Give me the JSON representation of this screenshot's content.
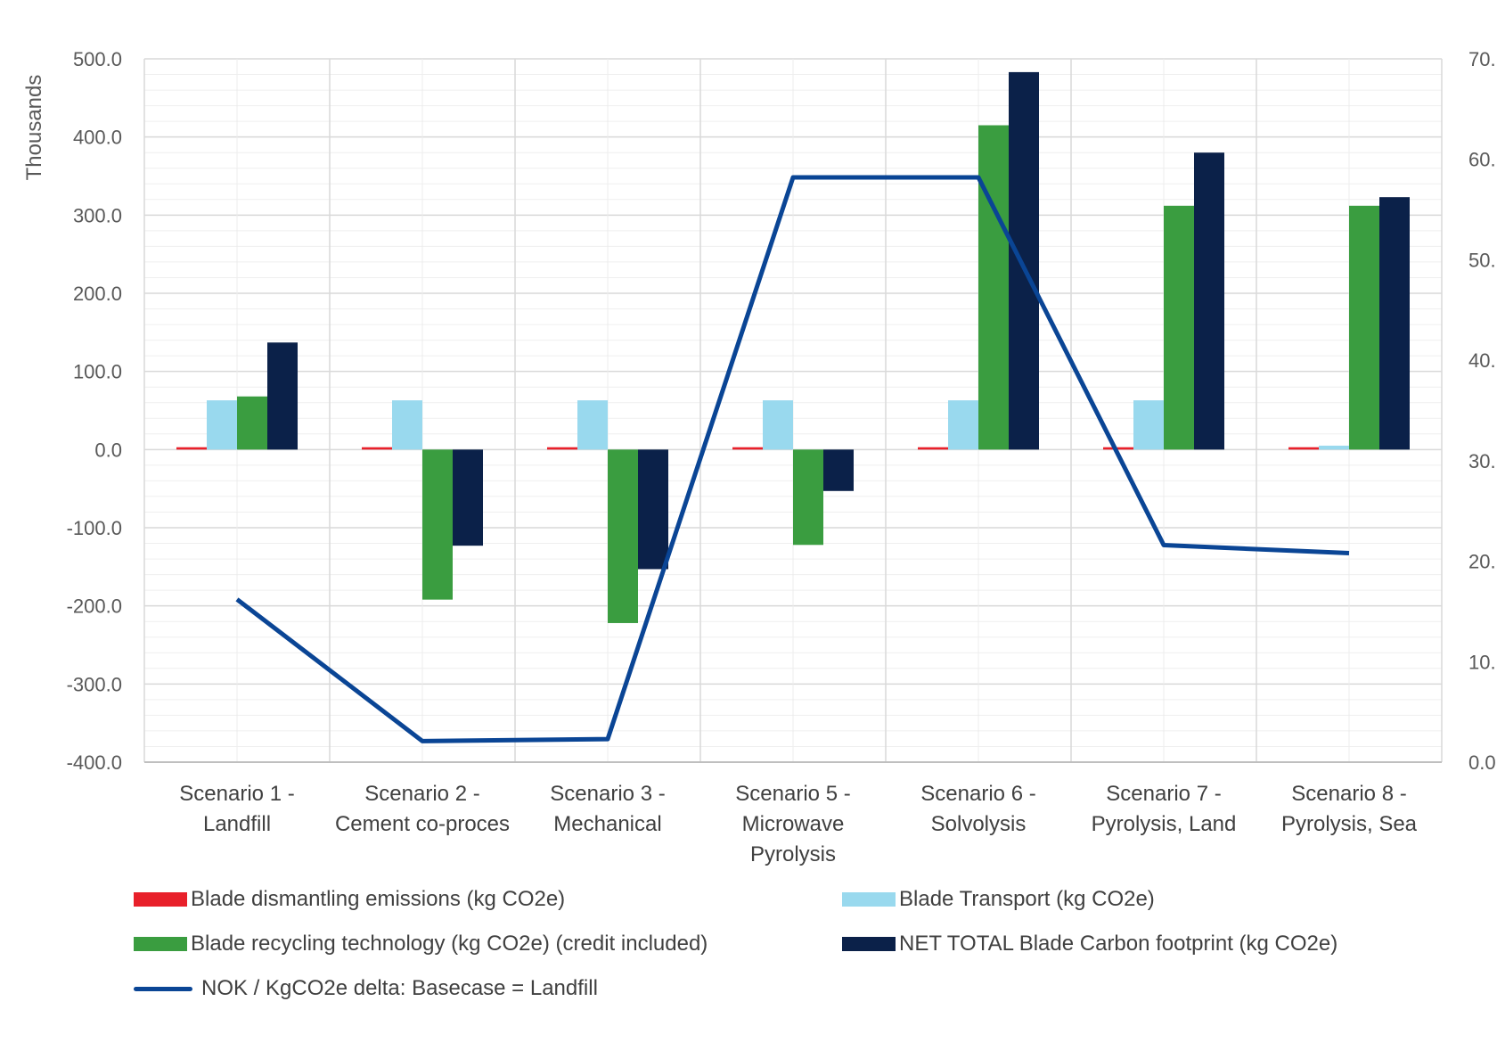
{
  "chart_data": {
    "type": "bar",
    "primary_axis_title": "Thousands",
    "categories": [
      [
        "Scenario 1 -",
        "Landfill"
      ],
      [
        "Scenario 2 -",
        "Cement co-proces"
      ],
      [
        "Scenario 3 -",
        "Mechanical"
      ],
      [
        "Scenario 5 -",
        "Microwave",
        "Pyrolysis"
      ],
      [
        "Scenario 6 -",
        "Solvolysis"
      ],
      [
        "Scenario 7 -",
        "Pyrolysis, Land"
      ],
      [
        "Scenario 8 -",
        "Pyrolysis, Sea"
      ]
    ],
    "ylim": [
      -400,
      500
    ],
    "y_ticks": [
      "500.0",
      "400.0",
      "300.0",
      "200.0",
      "100.0",
      "0.0",
      "-100.0",
      "-200.0",
      "-300.0",
      "-400.0"
    ],
    "y2lim": [
      0,
      70
    ],
    "y2_ticks": [
      "70.",
      "60.",
      "50.",
      "40.",
      "30.",
      "20.",
      "10.",
      "0.0"
    ],
    "series": [
      {
        "name": "Blade dismantling emissions (kg CO2e)",
        "kind": "bar",
        "color": "#e8202a",
        "values": [
          3,
          3,
          3,
          3,
          3,
          3,
          3
        ]
      },
      {
        "name": "Blade Transport  (kg CO2e)",
        "kind": "bar",
        "color": "#99d9ee",
        "values": [
          63,
          63,
          63,
          63,
          63,
          63,
          5
        ]
      },
      {
        "name": "Blade recycling technology (kg CO2e) (credit included)",
        "kind": "bar",
        "color": "#3a9d40",
        "values": [
          68,
          -192,
          -222,
          -122,
          415,
          312,
          312
        ]
      },
      {
        "name": "NET TOTAL Blade Carbon footprint (kg CO2e)",
        "kind": "bar",
        "color": "#0b2149",
        "values": [
          137,
          -123,
          -153,
          -53,
          483,
          380,
          323
        ]
      },
      {
        "name": "NOK / KgCO2e delta: Basecase = Landfill",
        "kind": "line",
        "axis": "secondary",
        "color": "#0a4595",
        "values": [
          16.2,
          2.1,
          2.3,
          58.2,
          58.2,
          21.6,
          20.8
        ]
      }
    ],
    "legend_position": "bottom",
    "grid": true
  }
}
